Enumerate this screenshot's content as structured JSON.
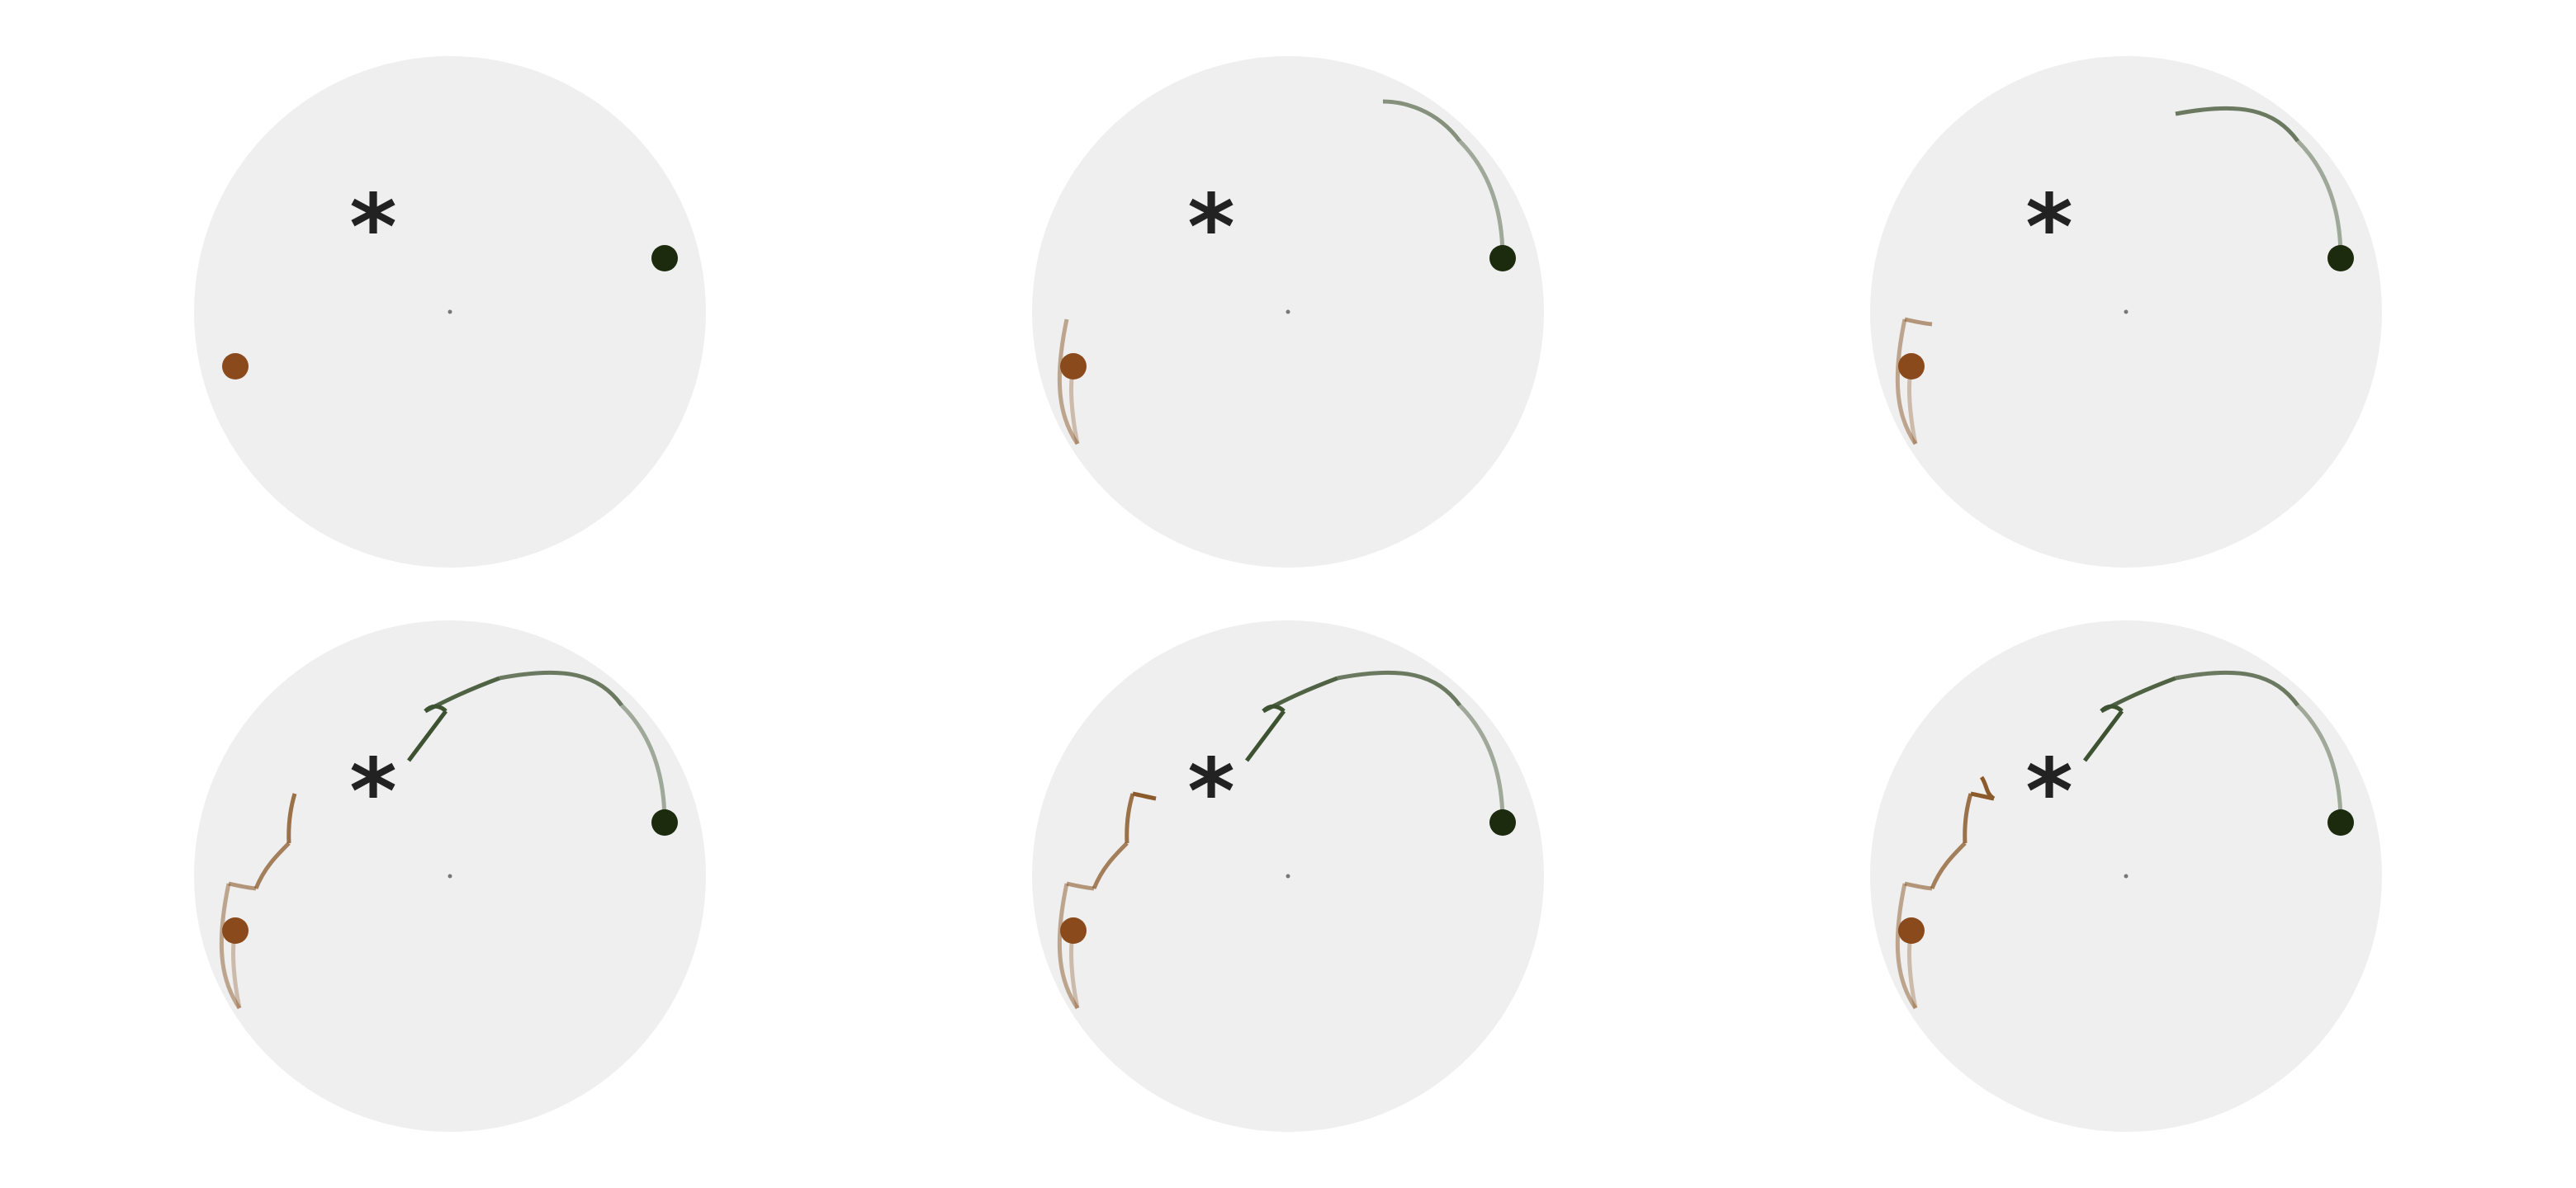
{
  "diagram": {
    "panels_count": 6,
    "marker_symbol": "*",
    "colors": {
      "background": "#ffffff",
      "disk": "#efefef",
      "center_dot": "#777777",
      "star": "#222222",
      "green_agent": "#1c2a0e",
      "brown_agent": "#8b4a1c",
      "green_trail": "#3d5230",
      "brown_trail": "#8b5a2b"
    },
    "icons": {
      "star": "asterisk-target-icon",
      "green_agent": "dark-green-dot-icon",
      "brown_agent": "brown-dot-icon"
    }
  }
}
